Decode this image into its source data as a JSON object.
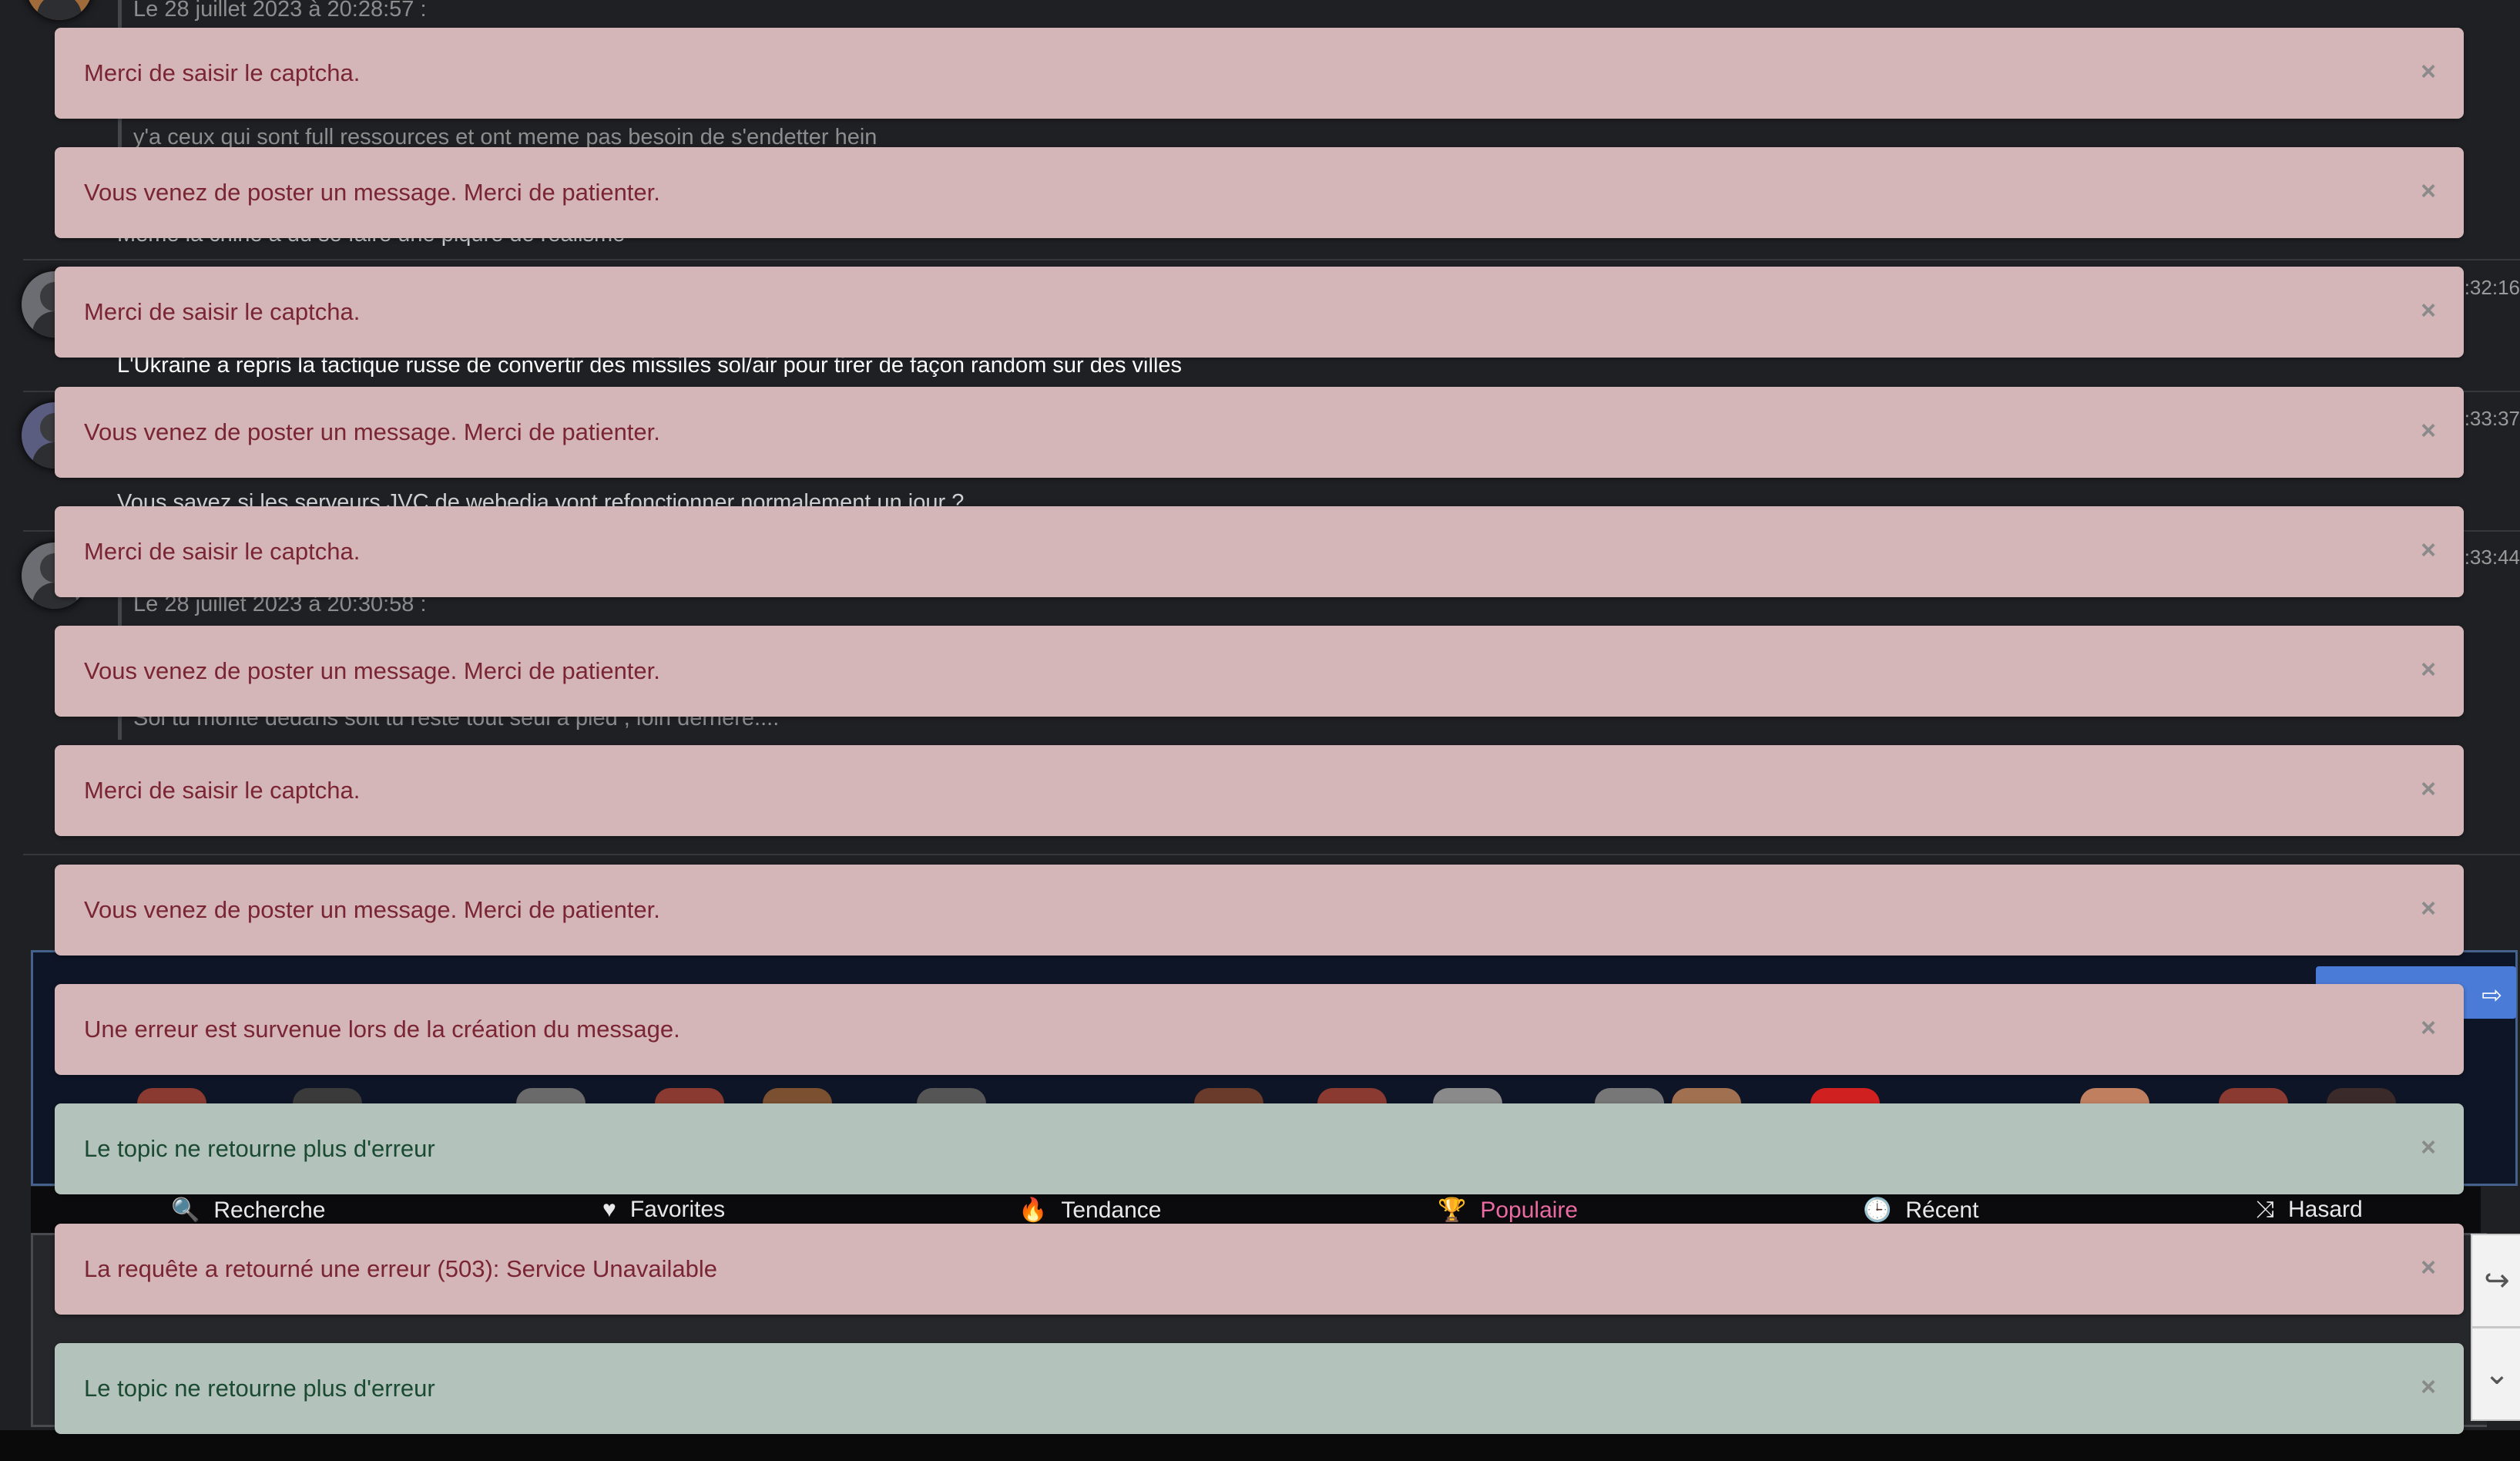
{
  "background_messages": {
    "quote_date_1": "Le 28 juillet 2023 à 20:28:57 :",
    "line_1": "y'a ceux qui sont full ressources et ont meme pas besoin de s'endetter hein",
    "line_2": "Meme la chine a du se faire une piqure de realisme",
    "time_1": ":32:16",
    "line_3": "L'Ukraine a repris la tactique russe de convertir des missiles sol/air pour tirer de façon random sur des villes",
    "time_2": ":33:37",
    "line_4": "Vous savez si les serveurs JVC de webedia vont refonctionner normalement un jour ?",
    "time_3": ":33:44",
    "quote_date_2": "Le 28 juillet 2023 à 20:30:58 :",
    "line_5": "Soi tu monte dedans soit tu reste tout seul a pied , loin derriere...."
  },
  "nav": {
    "items": [
      {
        "label": "Recherche",
        "icon": "search-icon",
        "glyph": "🔍"
      },
      {
        "label": "Favorites",
        "icon": "heart-icon",
        "glyph": "♥"
      },
      {
        "label": "Tendance",
        "icon": "fire-icon",
        "glyph": "🔥"
      },
      {
        "label": "Populaire",
        "icon": "trophy-icon",
        "glyph": "🏆"
      },
      {
        "label": "Récent",
        "icon": "clock-icon",
        "glyph": "🕒"
      },
      {
        "label": "Hasard",
        "icon": "shuffle-icon",
        "glyph": "⤨"
      }
    ],
    "active_color": "#ea6ba1"
  },
  "side_buttons": {
    "reply_glyph": "↪",
    "down_glyph": "⌄"
  },
  "exit_glyph": "⇨",
  "alerts": [
    {
      "type": "danger",
      "text": "Merci de saisir le captcha.",
      "close": "×"
    },
    {
      "type": "danger",
      "text": "Vous venez de poster un message. Merci de patienter.",
      "close": "×"
    },
    {
      "type": "danger",
      "text": "Merci de saisir le captcha.",
      "close": "×"
    },
    {
      "type": "danger",
      "text": "Vous venez de poster un message. Merci de patienter.",
      "close": "×"
    },
    {
      "type": "danger",
      "text": "Merci de saisir le captcha.",
      "close": "×"
    },
    {
      "type": "danger",
      "text": "Vous venez de poster un message. Merci de patienter.",
      "close": "×"
    },
    {
      "type": "danger",
      "text": "Merci de saisir le captcha.",
      "close": "×"
    },
    {
      "type": "danger",
      "text": "Vous venez de poster un message. Merci de patienter.",
      "close": "×"
    },
    {
      "type": "danger",
      "text": "Une erreur est survenue lors de la création du message.",
      "close": "×"
    },
    {
      "type": "success",
      "text": "Le topic ne retourne plus d'erreur",
      "close": "×"
    },
    {
      "type": "danger",
      "text": "La requête a retourné une erreur (503): Service Unavailable",
      "close": "×"
    },
    {
      "type": "success",
      "text": "Le topic ne retourne plus d'erreur",
      "close": "×"
    }
  ],
  "colors": {
    "danger_bg": "#d4b5b8",
    "danger_text": "#7a2533",
    "success_bg": "#b3c3bb",
    "success_text": "#1b4a33"
  }
}
